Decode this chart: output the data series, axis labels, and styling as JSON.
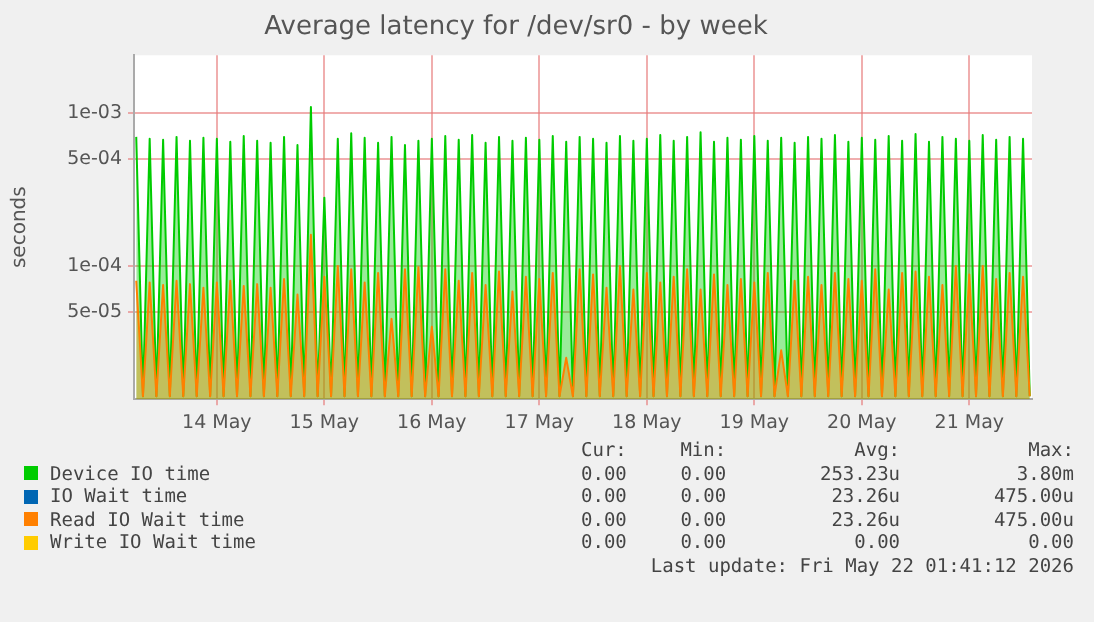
{
  "chart_data": {
    "type": "area",
    "title": "Average latency for /dev/sr0 - by week",
    "ylabel": "seconds",
    "log": "y",
    "ylim": [
      1.34e-05,
      0.0024
    ],
    "yticks": [
      {
        "value": 0.001,
        "label": "1e-03"
      },
      {
        "value": 0.0005,
        "label": "5e-04"
      },
      {
        "value": 0.0001,
        "label": "1e-04"
      },
      {
        "value": 5e-05,
        "label": "5e-05"
      }
    ],
    "xlim": [
      "2026-05-13T05:30",
      "2026-05-21T14:00"
    ],
    "xticks": [
      {
        "value": "2026-05-14",
        "label": "14 May"
      },
      {
        "value": "2026-05-15",
        "label": "15 May"
      },
      {
        "value": "2026-05-16",
        "label": "16 May"
      },
      {
        "value": "2026-05-17",
        "label": "17 May"
      },
      {
        "value": "2026-05-18",
        "label": "18 May"
      },
      {
        "value": "2026-05-19",
        "label": "19 May"
      },
      {
        "value": "2026-05-20",
        "label": "20 May"
      },
      {
        "value": "2026-05-21",
        "label": "21 May"
      }
    ],
    "grid": true,
    "legend": "bottom",
    "x": [
      "2026-05-13T06:00",
      "2026-05-13T07:30",
      "2026-05-13T09:00",
      "2026-05-13T10:30",
      "2026-05-13T12:00",
      "2026-05-13T13:30",
      "2026-05-13T15:00",
      "2026-05-13T16:30",
      "2026-05-13T18:00",
      "2026-05-13T19:30",
      "2026-05-13T21:00",
      "2026-05-13T22:30",
      "2026-05-14T00:00",
      "2026-05-14T01:30",
      "2026-05-14T03:00",
      "2026-05-14T04:30",
      "2026-05-14T06:00",
      "2026-05-14T07:30",
      "2026-05-14T09:00",
      "2026-05-14T10:30",
      "2026-05-14T12:00",
      "2026-05-14T13:30",
      "2026-05-14T15:00",
      "2026-05-14T16:30",
      "2026-05-14T18:00",
      "2026-05-14T19:30",
      "2026-05-14T21:00",
      "2026-05-14T22:30",
      "2026-05-15T00:00",
      "2026-05-15T01:30",
      "2026-05-15T03:00",
      "2026-05-15T04:30",
      "2026-05-15T06:00",
      "2026-05-15T07:30",
      "2026-05-15T09:00",
      "2026-05-15T10:30",
      "2026-05-15T12:00",
      "2026-05-15T13:30",
      "2026-05-15T15:00",
      "2026-05-15T16:30",
      "2026-05-15T18:00",
      "2026-05-15T19:30",
      "2026-05-15T21:00",
      "2026-05-15T22:30",
      "2026-05-16T00:00",
      "2026-05-16T01:30",
      "2026-05-16T03:00",
      "2026-05-16T04:30",
      "2026-05-16T06:00",
      "2026-05-16T07:30",
      "2026-05-16T09:00",
      "2026-05-16T10:30",
      "2026-05-16T12:00",
      "2026-05-16T13:30",
      "2026-05-16T15:00",
      "2026-05-16T16:30",
      "2026-05-16T18:00",
      "2026-05-16T19:30",
      "2026-05-16T21:00",
      "2026-05-16T22:30",
      "2026-05-17T00:00",
      "2026-05-17T01:30",
      "2026-05-17T03:00",
      "2026-05-17T04:30",
      "2026-05-17T06:00",
      "2026-05-17T07:30",
      "2026-05-17T09:00",
      "2026-05-17T10:30",
      "2026-05-17T12:00",
      "2026-05-17T13:30",
      "2026-05-17T15:00",
      "2026-05-17T16:30",
      "2026-05-17T18:00",
      "2026-05-17T19:30",
      "2026-05-17T21:00",
      "2026-05-17T22:30",
      "2026-05-18T00:00",
      "2026-05-18T01:30",
      "2026-05-18T03:00",
      "2026-05-18T04:30",
      "2026-05-18T06:00",
      "2026-05-18T07:30",
      "2026-05-18T09:00",
      "2026-05-18T10:30",
      "2026-05-18T12:00",
      "2026-05-18T13:30",
      "2026-05-18T15:00",
      "2026-05-18T16:30",
      "2026-05-18T18:00",
      "2026-05-18T19:30",
      "2026-05-18T21:00",
      "2026-05-18T22:30",
      "2026-05-19T00:00",
      "2026-05-19T01:30",
      "2026-05-19T03:00",
      "2026-05-19T04:30",
      "2026-05-19T06:00",
      "2026-05-19T07:30",
      "2026-05-19T09:00",
      "2026-05-19T10:30",
      "2026-05-19T12:00",
      "2026-05-19T13:30",
      "2026-05-19T15:00",
      "2026-05-19T16:30",
      "2026-05-19T18:00",
      "2026-05-19T19:30",
      "2026-05-19T21:00",
      "2026-05-19T22:30",
      "2026-05-20T00:00",
      "2026-05-20T01:30",
      "2026-05-20T03:00",
      "2026-05-20T04:30",
      "2026-05-20T06:00",
      "2026-05-20T07:30",
      "2026-05-20T09:00",
      "2026-05-20T10:30",
      "2026-05-20T12:00",
      "2026-05-20T13:30",
      "2026-05-20T15:00",
      "2026-05-20T16:30",
      "2026-05-20T18:00",
      "2026-05-20T19:30",
      "2026-05-20T21:00",
      "2026-05-20T22:30",
      "2026-05-21T00:00",
      "2026-05-21T01:30",
      "2026-05-21T03:00",
      "2026-05-21T04:30",
      "2026-05-21T06:00",
      "2026-05-21T07:30",
      "2026-05-21T09:00",
      "2026-05-21T10:30",
      "2026-05-21T12:00",
      "2026-05-21T13:30"
    ],
    "series": [
      {
        "name": "Device IO time",
        "color": "#00cc00",
        "values": [
          0.0007,
          1.4e-05,
          0.00068,
          1.4e-05,
          0.00067,
          1.4e-05,
          0.0007,
          1.4e-05,
          0.00066,
          1.4e-05,
          0.00069,
          1.4e-05,
          0.00068,
          1.4e-05,
          0.00065,
          1.4e-05,
          0.00071,
          1.4e-05,
          0.00066,
          1.4e-05,
          0.00064,
          1.4e-05,
          0.0007,
          1.4e-05,
          0.00062,
          1.4e-05,
          0.0011,
          1.4e-05,
          0.00028,
          1.4e-05,
          0.00068,
          1.4e-05,
          0.00074,
          1.4e-05,
          0.00069,
          1.4e-05,
          0.00064,
          1.4e-05,
          0.0007,
          1.4e-05,
          0.00062,
          1.4e-05,
          0.00066,
          1.4e-05,
          0.00068,
          1.4e-05,
          0.00071,
          1.4e-05,
          0.00067,
          1.4e-05,
          0.00072,
          1.4e-05,
          0.00064,
          1.4e-05,
          0.0007,
          1.4e-05,
          0.00066,
          1.4e-05,
          0.00069,
          1.4e-05,
          0.00067,
          1.4e-05,
          0.00071,
          1.4e-05,
          0.00065,
          1.4e-05,
          0.0007,
          1.4e-05,
          0.00068,
          1.4e-05,
          0.00064,
          1.4e-05,
          0.00071,
          1.4e-05,
          0.00066,
          1.4e-05,
          0.00068,
          1.4e-05,
          0.00072,
          1.4e-05,
          0.00066,
          1.4e-05,
          0.0007,
          1.4e-05,
          0.00075,
          1.4e-05,
          0.00065,
          1.4e-05,
          0.00069,
          1.4e-05,
          0.00067,
          1.4e-05,
          0.00071,
          1.4e-05,
          0.00066,
          1.4e-05,
          0.00069,
          1.4e-05,
          0.00064,
          1.4e-05,
          0.0007,
          1.4e-05,
          0.00068,
          1.4e-05,
          0.00072,
          1.4e-05,
          0.00065,
          1.4e-05,
          0.00069,
          1.4e-05,
          0.00067,
          1.4e-05,
          0.00071,
          1.4e-05,
          0.00066,
          1.4e-05,
          0.00073,
          1.4e-05,
          0.00065,
          1.4e-05,
          0.0007,
          1.4e-05,
          0.00068,
          1.4e-05,
          0.00066,
          1.4e-05,
          0.00072,
          1.4e-05,
          0.00067,
          1.4e-05,
          0.0007,
          1.4e-05,
          0.00068,
          1.4e-05
        ]
      },
      {
        "name": "IO Wait time",
        "color": "#0066b3",
        "values": [
          null,
          null,
          null,
          null,
          null,
          null,
          null,
          null,
          null,
          null,
          null,
          null,
          null,
          null,
          null,
          null,
          null,
          null,
          null,
          null,
          null,
          null,
          null,
          null,
          null,
          null,
          null,
          null,
          null,
          null,
          null,
          null,
          null,
          null,
          null,
          null,
          null,
          null,
          null,
          null,
          null,
          null,
          null,
          null,
          null,
          null,
          null,
          null,
          null,
          null,
          null,
          null,
          null,
          null,
          null,
          null,
          null,
          null,
          null,
          null,
          null,
          null,
          null,
          null,
          null,
          null,
          null,
          null,
          null,
          null,
          null,
          null,
          null,
          null,
          null,
          null,
          null,
          null,
          null,
          null,
          null,
          null,
          null,
          null,
          null,
          null,
          null,
          null,
          null,
          null,
          null,
          null,
          null,
          null,
          null,
          null,
          null,
          null,
          null,
          null,
          null,
          null,
          null,
          null,
          null,
          null,
          null,
          null,
          null,
          null,
          null,
          null,
          null,
          null,
          null,
          null,
          null,
          null,
          null,
          null,
          null,
          null,
          null,
          null,
          null,
          null,
          null,
          null,
          null,
          null,
          null,
          null,
          null,
          null
        ]
      },
      {
        "name": "Read IO Wait time",
        "color": "#ff8000",
        "values": [
          8e-05,
          1.4e-05,
          7.8e-05,
          1.4e-05,
          7.5e-05,
          1.4e-05,
          8e-05,
          1.4e-05,
          7.6e-05,
          1.4e-05,
          7.2e-05,
          1.4e-05,
          7.8e-05,
          1.4e-05,
          8e-05,
          1.4e-05,
          7.4e-05,
          1.4e-05,
          7.6e-05,
          1.4e-05,
          7.2e-05,
          1.4e-05,
          8.2e-05,
          1.4e-05,
          6.5e-05,
          1.4e-05,
          0.00016,
          1.4e-05,
          8.5e-05,
          1.4e-05,
          0.0001,
          1.4e-05,
          9.5e-05,
          1.4e-05,
          7.8e-05,
          1.4e-05,
          9e-05,
          1.4e-05,
          4.5e-05,
          1.4e-05,
          9.5e-05,
          1.4e-05,
          9.8e-05,
          1.4e-05,
          4e-05,
          1.4e-05,
          9.5e-05,
          1.4e-05,
          8e-05,
          1.4e-05,
          9e-05,
          1.4e-05,
          7.5e-05,
          1.4e-05,
          9.2e-05,
          1.4e-05,
          6.8e-05,
          1.4e-05,
          8.5e-05,
          1.4e-05,
          8.2e-05,
          1.4e-05,
          9e-05,
          1.4e-05,
          2.5e-05,
          1.4e-05,
          9.5e-05,
          1.4e-05,
          8.8e-05,
          1.4e-05,
          7.2e-05,
          1.4e-05,
          0.0001,
          1.4e-05,
          7e-05,
          1.4e-05,
          9e-05,
          1.4e-05,
          7.8e-05,
          1.4e-05,
          8.5e-05,
          1.4e-05,
          9.5e-05,
          1.4e-05,
          7e-05,
          1.4e-05,
          8.8e-05,
          1.4e-05,
          7.5e-05,
          1.4e-05,
          8.2e-05,
          1.4e-05,
          7.8e-05,
          1.4e-05,
          9e-05,
          1.4e-05,
          2.8e-05,
          1.4e-05,
          8e-05,
          1.4e-05,
          8.5e-05,
          1.4e-05,
          7.5e-05,
          1.4e-05,
          9e-05,
          1.4e-05,
          8.2e-05,
          1.4e-05,
          8e-05,
          1.4e-05,
          9.5e-05,
          1.4e-05,
          7e-05,
          1.4e-05,
          9e-05,
          1.4e-05,
          9.2e-05,
          1.4e-05,
          8.5e-05,
          1.4e-05,
          7.5e-05,
          1.4e-05,
          0.0001,
          1.4e-05,
          8.8e-05,
          1.4e-05,
          0.0001,
          1.4e-05,
          8.2e-05,
          1.4e-05,
          9e-05,
          1.4e-05,
          8.5e-05,
          1.4e-05
        ]
      },
      {
        "name": "Write IO Wait time",
        "color": "#ffcc00",
        "values": [
          null,
          null,
          null,
          null,
          null,
          null,
          null,
          null,
          null,
          null,
          null,
          null,
          null,
          null,
          null,
          null,
          null,
          null,
          null,
          null,
          null,
          null,
          null,
          null,
          null,
          null,
          null,
          null,
          null,
          null,
          null,
          null,
          null,
          null,
          null,
          null,
          null,
          null,
          null,
          null,
          null,
          null,
          null,
          null,
          null,
          null,
          null,
          null,
          null,
          null,
          null,
          null,
          null,
          null,
          null,
          null,
          null,
          null,
          null,
          null,
          null,
          null,
          null,
          null,
          null,
          null,
          null,
          null,
          null,
          null,
          null,
          null,
          null,
          null,
          null,
          null,
          null,
          null,
          null,
          null,
          null,
          null,
          null,
          null,
          null,
          null,
          null,
          null,
          null,
          null,
          null,
          null,
          null,
          null,
          null,
          null,
          null,
          null,
          null,
          null,
          null,
          null,
          null,
          null,
          null,
          null,
          null,
          null,
          null,
          null,
          null,
          null,
          null,
          null,
          null,
          null,
          null,
          null,
          null,
          null,
          null,
          null,
          null,
          null,
          null,
          null,
          null,
          null,
          null,
          null,
          null,
          null,
          null,
          null
        ]
      }
    ],
    "annotations": [
      "Cur:",
      "Min:",
      "Avg:",
      "Max:",
      "0.00",
      "0.00",
      "253.23u",
      "3.80m",
      "0.00",
      "0.00",
      "23.26u",
      "475.00u",
      "0.00",
      "0.00",
      "23.26u",
      "475.00u",
      "0.00",
      "0.00",
      "0.00",
      "0.00",
      "Last update: Fri May 22 01:41:12 2026"
    ]
  }
}
